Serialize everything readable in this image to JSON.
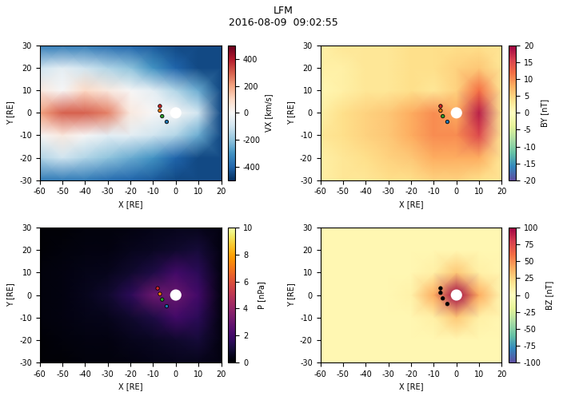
{
  "title": "LFM",
  "subtitle": "2016-08-09  09:02:55",
  "chart_data": [
    {
      "type": "heatmap",
      "xlabel": "X [RE]",
      "ylabel": "Y [RE]",
      "x": [
        -60,
        -50,
        -40,
        -30,
        -20,
        -10,
        0,
        10,
        20
      ],
      "y": [
        -30,
        -20,
        -10,
        0,
        10,
        20,
        30
      ],
      "cells": [
        [
          -350,
          -350,
          -350,
          -380,
          -400,
          -420,
          -450,
          -450,
          -450
        ],
        [
          -150,
          -100,
          -150,
          -200,
          -250,
          -300,
          -400,
          -450,
          -450
        ],
        [
          0,
          50,
          0,
          -50,
          -50,
          -100,
          -150,
          -250,
          -450
        ],
        [
          200,
          300,
          300,
          250,
          50,
          0,
          0,
          -100,
          -450
        ],
        [
          50,
          0,
          100,
          50,
          0,
          -50,
          -150,
          -250,
          -450
        ],
        [
          -100,
          -50,
          -100,
          -150,
          -200,
          -300,
          -400,
          -450,
          -450
        ],
        [
          -350,
          -350,
          -350,
          -380,
          -400,
          -420,
          -450,
          -450,
          -450
        ]
      ],
      "xlim": [
        -60,
        20
      ],
      "ylim": [
        -30,
        30
      ],
      "xticks": [
        -60,
        -50,
        -40,
        -30,
        -20,
        -10,
        0,
        10,
        20
      ],
      "yticks": [
        -30,
        -20,
        -10,
        0,
        10,
        20,
        30
      ],
      "colorbar_label": "VX [km/s]",
      "colorbar_range": [
        -500,
        500
      ],
      "colorbar_ticks": [
        -400,
        -200,
        0,
        200,
        400
      ],
      "points": {
        "x": [
          -7,
          -7,
          -6,
          -4
        ],
        "y": [
          3,
          1,
          -1.5,
          -4
        ],
        "colors": [
          "#d62728",
          "#ff7f0e",
          "#2ca02c",
          "#1f77b4"
        ]
      }
    },
    {
      "type": "heatmap",
      "xlabel": "X [RE]",
      "ylabel": "Y [RE]",
      "x": [
        -60,
        -50,
        -40,
        -30,
        -20,
        -10,
        0,
        10,
        20
      ],
      "y": [
        -30,
        -20,
        -10,
        0,
        10,
        20,
        30
      ],
      "cells": [
        [
          2,
          3,
          3,
          4,
          4,
          5,
          5,
          4,
          3
        ],
        [
          2,
          3,
          4,
          5,
          6,
          8,
          8,
          8,
          3
        ],
        [
          3,
          4,
          5,
          6,
          8,
          10,
          10,
          15,
          3
        ],
        [
          2,
          4,
          5,
          6,
          8,
          10,
          8,
          18,
          3
        ],
        [
          1,
          2,
          3,
          3,
          4,
          3,
          5,
          12,
          3
        ],
        [
          2,
          2,
          3,
          3,
          4,
          4,
          5,
          6,
          3
        ],
        [
          2,
          3,
          3,
          3,
          4,
          4,
          4,
          4,
          3
        ]
      ],
      "xlim": [
        -60,
        20
      ],
      "ylim": [
        -30,
        30
      ],
      "xticks": [
        -60,
        -50,
        -40,
        -30,
        -20,
        -10,
        0,
        10,
        20
      ],
      "yticks": [
        -30,
        -20,
        -10,
        0,
        10,
        20,
        30
      ],
      "colorbar_label": "BY [nT]",
      "colorbar_range": [
        -20,
        20
      ],
      "colorbar_ticks": [
        -20,
        -15,
        -10,
        -5,
        0,
        5,
        10,
        15,
        20
      ],
      "points": {
        "x": [
          -7,
          -7,
          -6,
          -4
        ],
        "y": [
          3,
          1,
          -1.5,
          -4
        ],
        "colors": [
          "#d62728",
          "#ff7f0e",
          "#2ca02c",
          "#1f77b4"
        ]
      }
    },
    {
      "type": "heatmap",
      "xlabel": "X [RE]",
      "ylabel": "Y [RE]",
      "x": [
        -60,
        -50,
        -40,
        -30,
        -20,
        -10,
        0,
        10,
        20
      ],
      "y": [
        -30,
        -20,
        -10,
        0,
        10,
        20,
        30
      ],
      "cells": [
        [
          0.1,
          0.1,
          0.2,
          0.2,
          0.3,
          0.4,
          0.5,
          0.5,
          0.3
        ],
        [
          0.1,
          0.2,
          0.3,
          0.3,
          0.5,
          0.6,
          0.8,
          1.0,
          0.3
        ],
        [
          0.2,
          0.3,
          0.4,
          0.5,
          0.8,
          1.2,
          2.0,
          1.5,
          0.3
        ],
        [
          0.2,
          0.3,
          0.5,
          0.8,
          1.5,
          3.0,
          3.0,
          2.0,
          0.3
        ],
        [
          0.2,
          0.3,
          0.4,
          0.5,
          0.8,
          1.2,
          2.0,
          1.5,
          0.3
        ],
        [
          0.1,
          0.2,
          0.3,
          0.3,
          0.5,
          0.6,
          0.8,
          1.0,
          0.3
        ],
        [
          0.1,
          0.1,
          0.2,
          0.2,
          0.3,
          0.4,
          0.5,
          0.5,
          0.3
        ]
      ],
      "xlim": [
        -60,
        20
      ],
      "ylim": [
        -30,
        30
      ],
      "xticks": [
        -60,
        -50,
        -40,
        -30,
        -20,
        -10,
        0,
        10,
        20
      ],
      "yticks": [
        -30,
        -20,
        -10,
        0,
        10,
        20,
        30
      ],
      "colorbar_label": "P [nPa]",
      "colorbar_range": [
        0,
        10
      ],
      "colorbar_ticks": [
        0,
        2,
        4,
        6,
        8,
        10
      ],
      "points": {
        "x": [
          -8,
          -7,
          -6,
          -4
        ],
        "y": [
          3,
          0.5,
          -2,
          -5
        ],
        "colors": [
          "#d62728",
          "#ff7f0e",
          "#2ca02c",
          "#1f77b4"
        ]
      }
    },
    {
      "type": "heatmap",
      "xlabel": "X [RE]",
      "ylabel": "Y [RE]",
      "x": [
        -60,
        -50,
        -40,
        -30,
        -20,
        -10,
        0,
        10,
        20
      ],
      "y": [
        -30,
        -20,
        -10,
        0,
        10,
        20,
        30
      ],
      "cells": [
        [
          5,
          5,
          5,
          5,
          5,
          5,
          5,
          5,
          5
        ],
        [
          5,
          5,
          5,
          5,
          5,
          5,
          5,
          5,
          5
        ],
        [
          5,
          5,
          5,
          5,
          5,
          10,
          30,
          10,
          5
        ],
        [
          5,
          5,
          5,
          5,
          8,
          40,
          100,
          40,
          5
        ],
        [
          5,
          5,
          5,
          5,
          5,
          10,
          30,
          10,
          5
        ],
        [
          5,
          5,
          5,
          5,
          5,
          5,
          5,
          5,
          5
        ],
        [
          5,
          5,
          5,
          5,
          5,
          5,
          5,
          5,
          5
        ]
      ],
      "xlim": [
        -60,
        20
      ],
      "ylim": [
        -30,
        30
      ],
      "xticks": [
        -60,
        -50,
        -40,
        -30,
        -20,
        -10,
        0,
        10,
        20
      ],
      "yticks": [
        -30,
        -20,
        -10,
        0,
        10,
        20,
        30
      ],
      "colorbar_label": "BZ [nT]",
      "colorbar_range": [
        -100,
        100
      ],
      "colorbar_ticks": [
        -100,
        -75,
        -50,
        -25,
        0,
        25,
        50,
        75,
        100
      ],
      "points": {
        "x": [
          -7,
          -7,
          -6,
          -4
        ],
        "y": [
          3,
          1,
          -1.5,
          -4
        ],
        "colors": [
          "#000000",
          "#000000",
          "#000000",
          "#000000"
        ]
      }
    }
  ]
}
